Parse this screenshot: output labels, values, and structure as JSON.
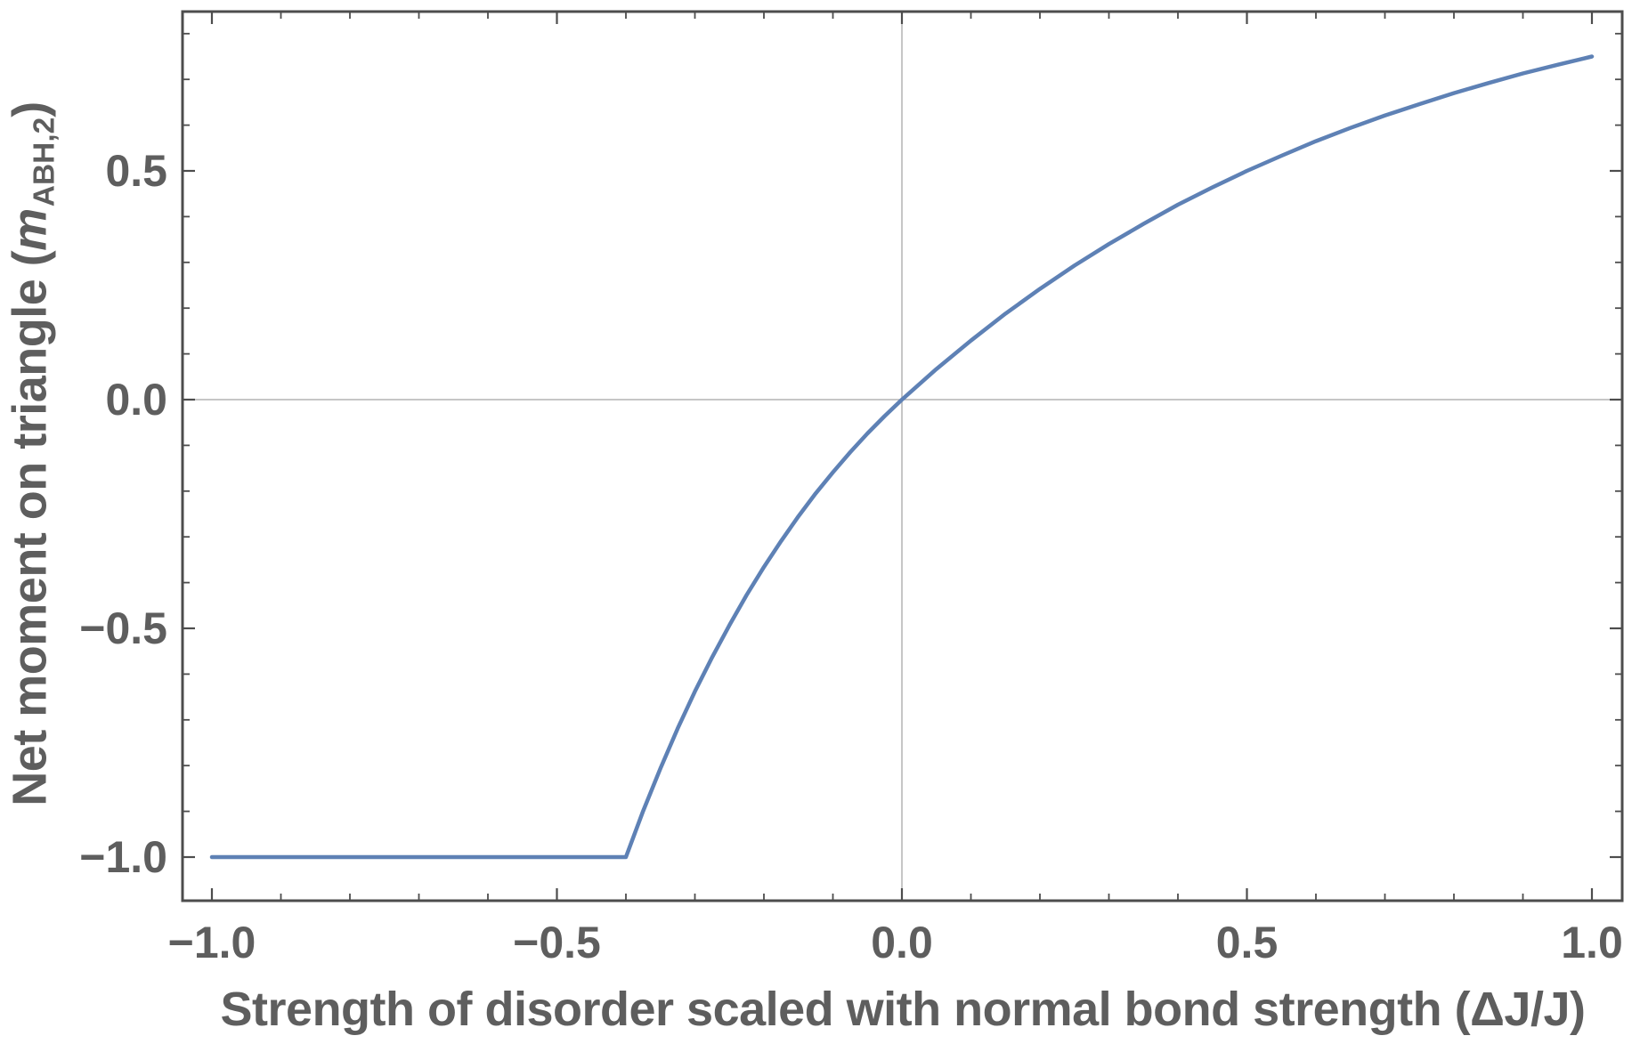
{
  "chart_data": {
    "type": "line",
    "title": "",
    "xlabel": "Strength of disorder scaled with normal bond strength (ΔJ/J)",
    "ylabel": {
      "prefix": "Net moment on triangle (",
      "var": "m",
      "sub": "ABH,2",
      "suffix": ")"
    },
    "xlim": [
      -1.043,
      1.044
    ],
    "ylim": [
      -1.095,
      0.848
    ],
    "grid": {
      "x_lines": [
        0.0
      ],
      "y_lines": [
        0.0
      ]
    },
    "legend": "none",
    "x_ticks": [
      {
        "value": -1.0,
        "label": "−1.0"
      },
      {
        "value": -0.5,
        "label": "−0.5"
      },
      {
        "value": 0.0,
        "label": "0.0"
      },
      {
        "value": 0.5,
        "label": "0.5"
      },
      {
        "value": 1.0,
        "label": "1.0"
      }
    ],
    "y_ticks": [
      {
        "value": 0.5,
        "label": "0.5"
      },
      {
        "value": 0.0,
        "label": "0.0"
      },
      {
        "value": -0.5,
        "label": "−0.5"
      },
      {
        "value": -1.0,
        "label": "−1.0"
      }
    ],
    "x_minor_ticks": [
      -0.9,
      -0.8,
      -0.7,
      -0.6,
      -0.4,
      -0.3,
      -0.2,
      -0.1,
      0.1,
      0.2,
      0.3,
      0.4,
      0.6,
      0.7,
      0.8,
      0.9
    ],
    "y_minor_ticks": [
      0.8,
      0.7,
      0.6,
      0.4,
      0.3,
      0.2,
      0.1,
      -0.1,
      -0.2,
      -0.3,
      -0.4,
      -0.6,
      -0.7,
      -0.8,
      -0.9
    ],
    "series": [
      {
        "name": "net-moment-curve",
        "points": [
          [
            -1.0,
            -1.0
          ],
          [
            -0.9,
            -1.0
          ],
          [
            -0.8,
            -1.0
          ],
          [
            -0.7,
            -1.0
          ],
          [
            -0.6,
            -1.0
          ],
          [
            -0.5,
            -1.0
          ],
          [
            -0.45,
            -1.0
          ],
          [
            -0.4,
            -1.0
          ],
          [
            -0.375,
            -0.899
          ],
          [
            -0.35,
            -0.806
          ],
          [
            -0.325,
            -0.719
          ],
          [
            -0.3,
            -0.638
          ],
          [
            -0.275,
            -0.563
          ],
          [
            -0.25,
            -0.493
          ],
          [
            -0.225,
            -0.427
          ],
          [
            -0.2,
            -0.366
          ],
          [
            -0.175,
            -0.309
          ],
          [
            -0.15,
            -0.255
          ],
          [
            -0.125,
            -0.205
          ],
          [
            -0.1,
            -0.159
          ],
          [
            -0.075,
            -0.115
          ],
          [
            -0.05,
            -0.074
          ],
          [
            -0.025,
            -0.036
          ],
          [
            0.0,
            0.0
          ],
          [
            0.05,
            0.067
          ],
          [
            0.1,
            0.129
          ],
          [
            0.15,
            0.188
          ],
          [
            0.2,
            0.242
          ],
          [
            0.25,
            0.293
          ],
          [
            0.3,
            0.34
          ],
          [
            0.35,
            0.384
          ],
          [
            0.4,
            0.426
          ],
          [
            0.45,
            0.464
          ],
          [
            0.5,
            0.5
          ],
          [
            0.55,
            0.533
          ],
          [
            0.6,
            0.565
          ],
          [
            0.65,
            0.594
          ],
          [
            0.7,
            0.621
          ],
          [
            0.75,
            0.646
          ],
          [
            0.8,
            0.67
          ],
          [
            0.85,
            0.692
          ],
          [
            0.9,
            0.713
          ],
          [
            0.95,
            0.732
          ],
          [
            1.0,
            0.75
          ]
        ]
      }
    ],
    "annotations": {
      "plateau_value": -1.0,
      "kink_x": -0.4,
      "value_at_x1": 0.75
    },
    "colors": {
      "curve": "#5e81b5",
      "frame": "#4d4d4d",
      "tick": "#4d4d4d",
      "grid": "#b3b3b3",
      "label_text": "#5e5e5e",
      "background": "#ffffff"
    }
  }
}
